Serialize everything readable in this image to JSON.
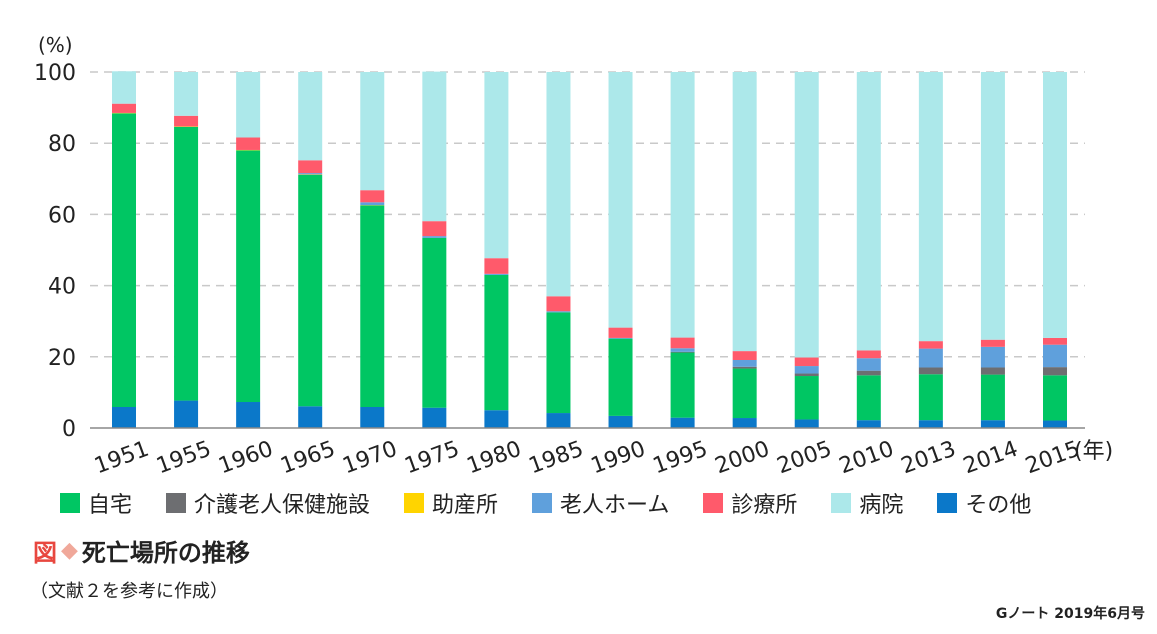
{
  "chart_data": {
    "type": "bar",
    "stacked": true,
    "ylabel": "(%)",
    "x_unit": "(年)",
    "ylim": [
      0,
      100
    ],
    "yticks": [
      0,
      20,
      40,
      60,
      80,
      100
    ],
    "grid": true,
    "legend_position": "bottom",
    "categories": [
      "1951",
      "1955",
      "1960",
      "1965",
      "1970",
      "1975",
      "1980",
      "1985",
      "1990",
      "1995",
      "2000",
      "2005",
      "2010",
      "2013",
      "2014",
      "2015"
    ],
    "series": [
      {
        "name": "その他",
        "color": "#0b78c9",
        "values": [
          5.9,
          7.7,
          7.3,
          6.1,
          5.9,
          5.7,
          5.0,
          4.2,
          3.4,
          2.9,
          2.8,
          2.4,
          2.2,
          2.2,
          2.2,
          2.1
        ]
      },
      {
        "name": "自宅",
        "color": "#00c663",
        "values": [
          82.5,
          76.9,
          70.7,
          65.0,
          56.6,
          47.7,
          38.0,
          28.3,
          21.7,
          18.3,
          13.9,
          12.2,
          12.6,
          12.9,
          12.8,
          12.7
        ]
      },
      {
        "name": "介護老人保健施設",
        "color": "#6d6e71",
        "values": [
          0,
          0,
          0,
          0,
          0,
          0,
          0,
          0,
          0,
          0.2,
          0.5,
          0.7,
          1.3,
          1.9,
          2.0,
          2.3
        ]
      },
      {
        "name": "助産所",
        "color": "#ffd400",
        "values": [
          0.1,
          0.1,
          0.1,
          0.1,
          0.1,
          0,
          0,
          0,
          0,
          0,
          0,
          0,
          0,
          0,
          0,
          0
        ]
      },
      {
        "name": "老人ホーム",
        "color": "#5fa0dc",
        "values": [
          0,
          0,
          0,
          0.4,
          0.8,
          0.5,
          0.3,
          0.3,
          0.2,
          1.0,
          1.9,
          2.1,
          3.5,
          5.3,
          5.8,
          6.3
        ]
      },
      {
        "name": "診療所",
        "color": "#ff5a6b",
        "values": [
          2.6,
          3.0,
          3.5,
          3.6,
          3.4,
          4.2,
          4.4,
          4.2,
          2.9,
          3.0,
          2.5,
          2.4,
          2.2,
          2.1,
          2.0,
          1.9
        ]
      },
      {
        "name": "病院",
        "color": "#ace8ea",
        "values": [
          9.1,
          12.3,
          18.4,
          24.8,
          33.2,
          42.0,
          52.3,
          63.0,
          71.8,
          74.6,
          78.4,
          80.2,
          78.2,
          75.6,
          75.2,
          74.7
        ]
      }
    ]
  },
  "legend_order": [
    {
      "label": "自宅",
      "color": "#00c663"
    },
    {
      "label": "介護老人保健施設",
      "color": "#6d6e71"
    },
    {
      "label": "助産所",
      "color": "#ffd400"
    },
    {
      "label": "老人ホーム",
      "color": "#5fa0dc"
    },
    {
      "label": "診療所",
      "color": "#ff5a6b"
    },
    {
      "label": "病院",
      "color": "#ace8ea"
    },
    {
      "label": "その他",
      "color": "#0b78c9"
    }
  ],
  "caption": {
    "label": "図",
    "diamond": "◆",
    "title": "死亡場所の推移"
  },
  "source_note": "（文献２を参考に作成）",
  "journal": "Gノート 2019年6月号"
}
